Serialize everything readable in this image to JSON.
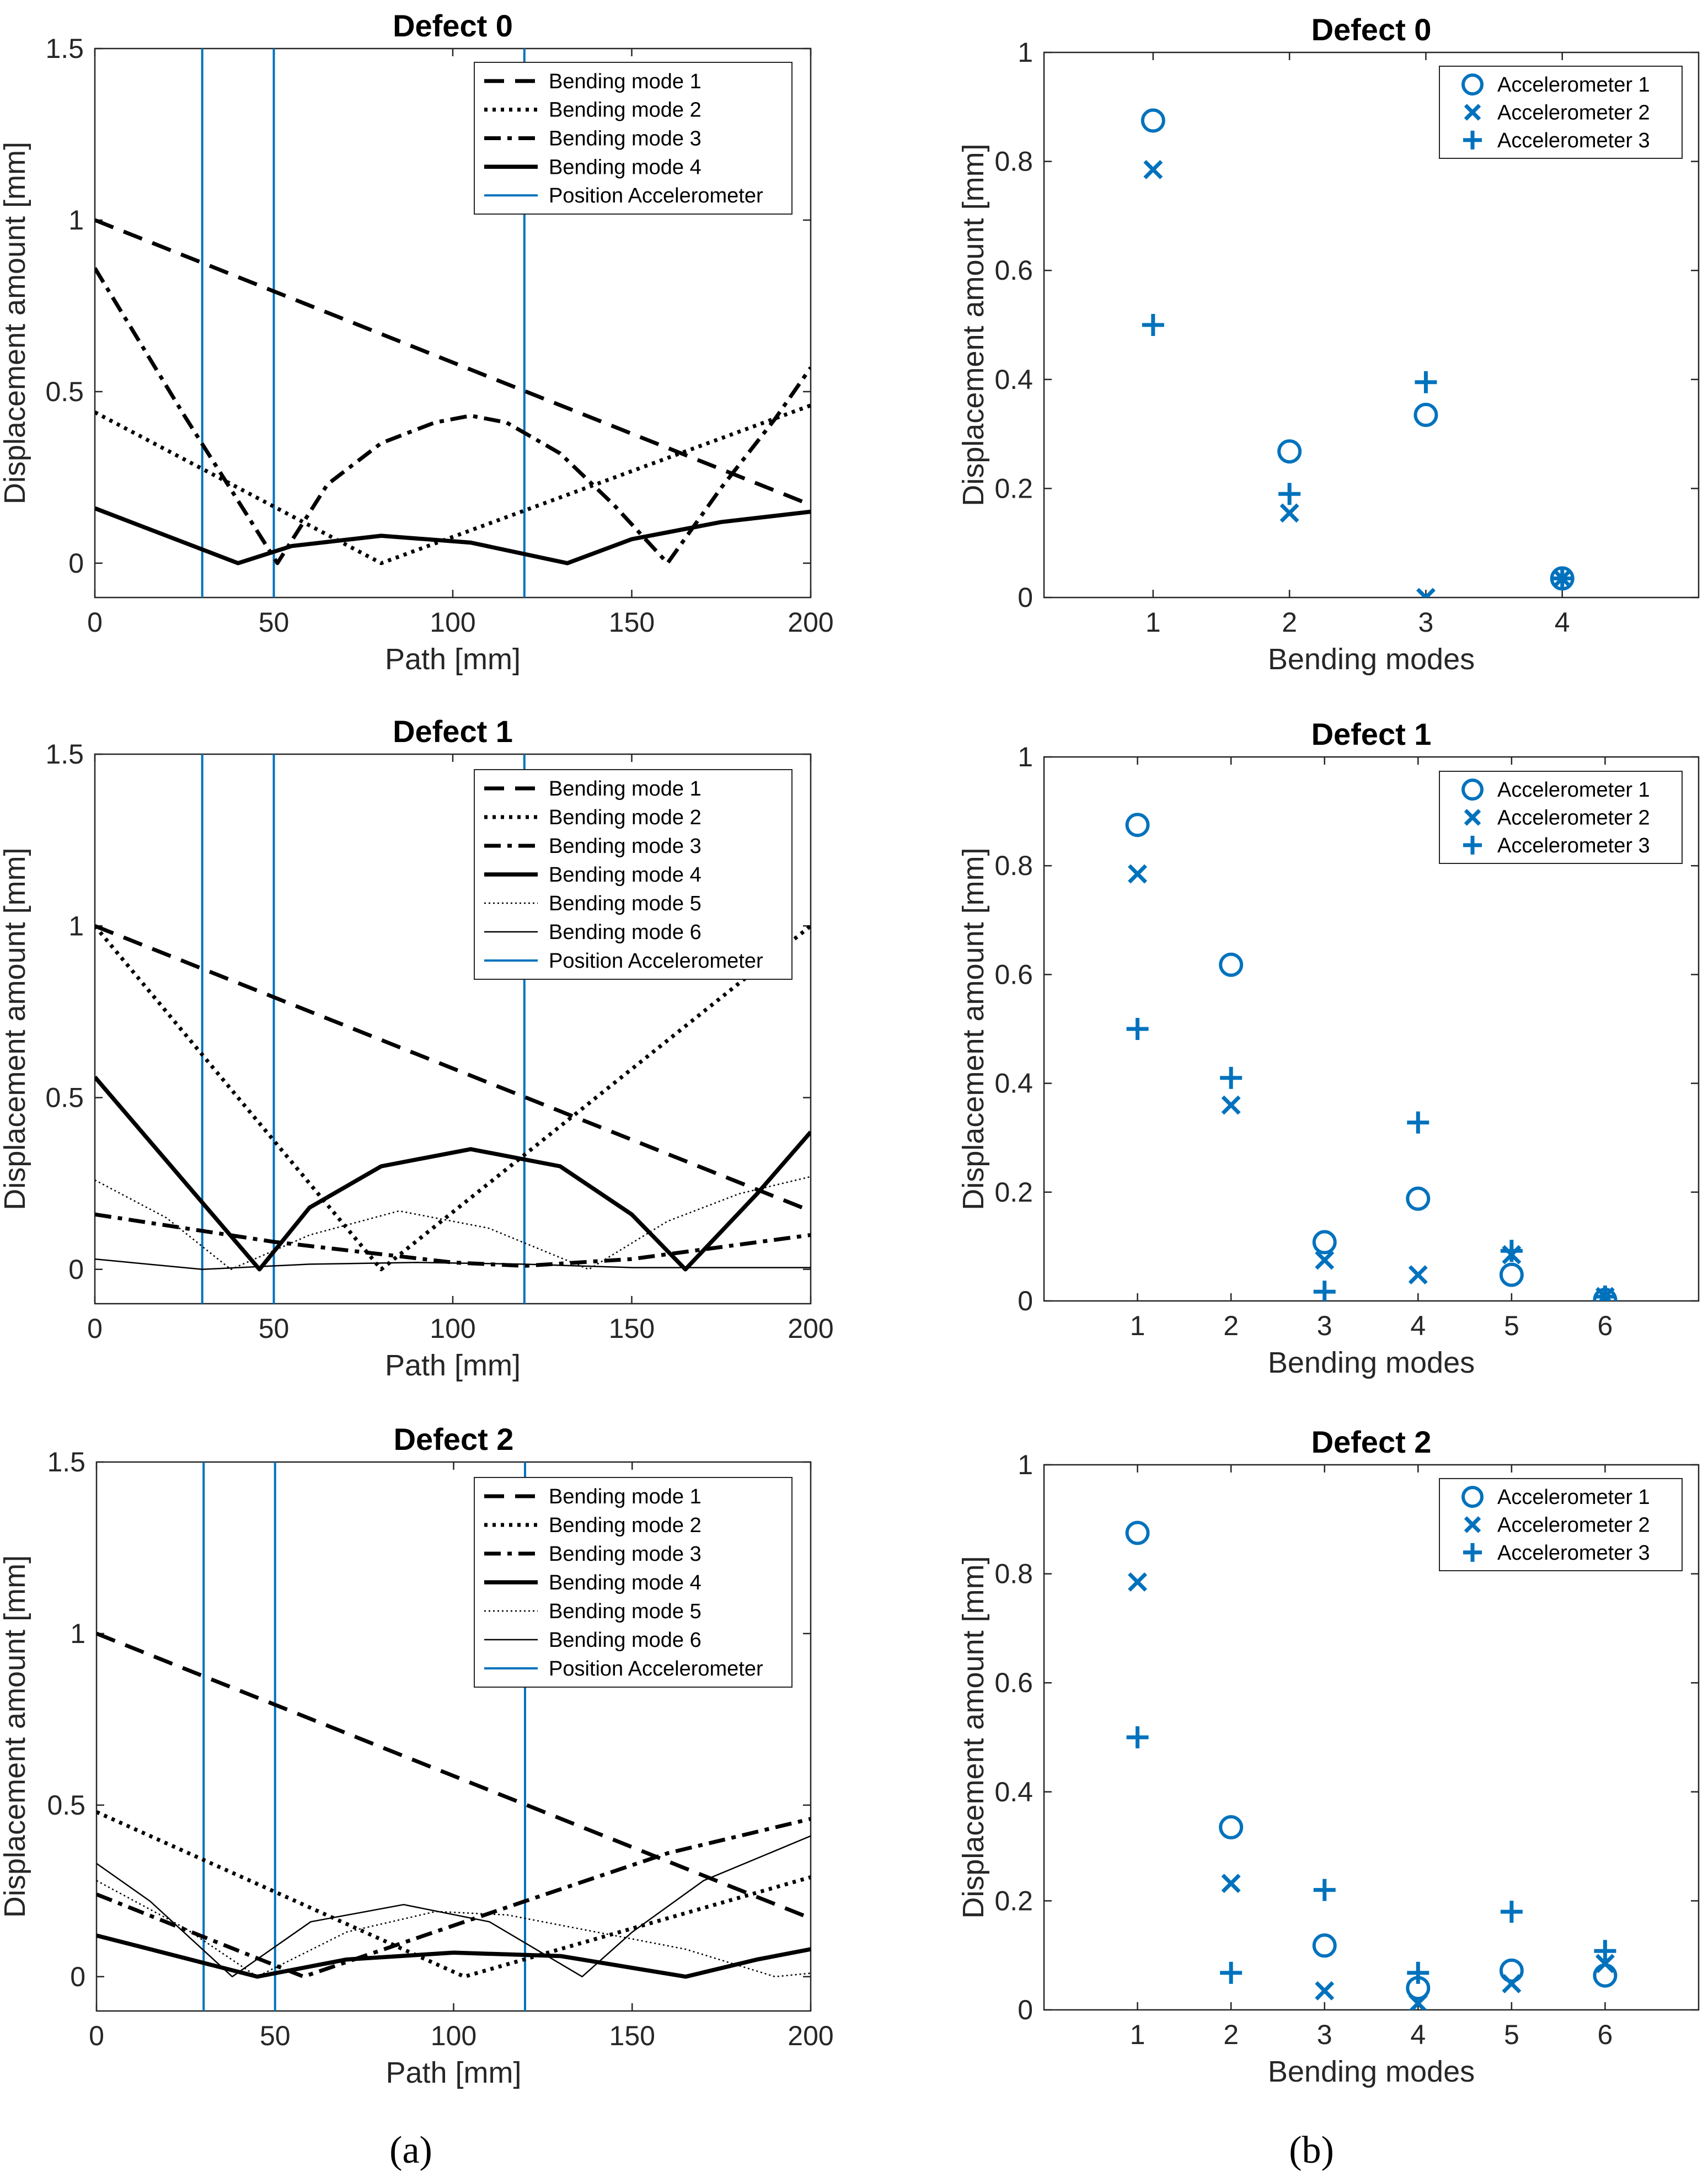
{
  "colors": {
    "accent": "#0072BD",
    "line": "#000000"
  },
  "panel_labels": {
    "a": "(a)",
    "b": "(b)"
  },
  "chart_data": [
    {
      "id": "a0",
      "type": "line",
      "title": "Defect 0",
      "xlabel": "Path [mm]",
      "ylabel": "Displacement amount [mm]",
      "xlim": [
        0,
        200
      ],
      "ylim": [
        -0.1,
        1.5
      ],
      "xticks": [
        0,
        50,
        100,
        150,
        200
      ],
      "xtick_labels": [
        "0",
        "50",
        "100",
        "150",
        "200"
      ],
      "yticks": [
        0,
        0.5,
        1,
        1.5
      ],
      "ytick_labels": [
        "0",
        "0.5",
        "1",
        "1.5"
      ],
      "vlines": [
        30,
        50,
        120
      ],
      "legend": [
        "Bending mode 1",
        "Bending mode 2",
        "Bending mode 3",
        "Bending mode 4",
        "Position Accelerometer"
      ],
      "series": [
        {
          "name": "Bending mode 1",
          "x": [
            0,
            200
          ],
          "y": [
            1.0,
            0.17
          ]
        },
        {
          "name": "Bending mode 2",
          "x": [
            0,
            80,
            200
          ],
          "y": [
            0.44,
            0.0,
            0.46
          ]
        },
        {
          "name": "Bending mode 3",
          "x": [
            0,
            25,
            51,
            65,
            80,
            95,
            105,
            115,
            130,
            145,
            160,
            175,
            190,
            200
          ],
          "y": [
            0.86,
            0.43,
            0.0,
            0.23,
            0.35,
            0.41,
            0.43,
            0.41,
            0.32,
            0.17,
            0.0,
            0.22,
            0.42,
            0.57
          ]
        },
        {
          "name": "Bending mode 4",
          "x": [
            0,
            40,
            55,
            80,
            105,
            132,
            150,
            175,
            200
          ],
          "y": [
            0.16,
            0.0,
            0.05,
            0.08,
            0.06,
            0.0,
            0.07,
            0.12,
            0.15
          ]
        }
      ]
    },
    {
      "id": "b0",
      "type": "scatter",
      "title": "Defect 0",
      "xlabel": "Bending modes",
      "ylabel": "Displacement amount [mm]",
      "xlim": [
        0.2,
        5
      ],
      "ylim": [
        0,
        1
      ],
      "xticks": [
        1,
        2,
        3,
        4
      ],
      "xtick_labels": [
        "1",
        "2",
        "3",
        "4"
      ],
      "yticks": [
        0,
        0.2,
        0.4,
        0.6,
        0.8,
        1
      ],
      "ytick_labels": [
        "0",
        "0.2",
        "0.4",
        "0.6",
        "0.8",
        "1"
      ],
      "legend": [
        "Accelerometer 1",
        "Accelerometer 2",
        "Accelerometer 3"
      ],
      "series": [
        {
          "name": "Accelerometer 1",
          "marker": "o",
          "x": [
            1,
            2,
            3,
            4
          ],
          "y": [
            0.875,
            0.268,
            0.335,
            0.035
          ]
        },
        {
          "name": "Accelerometer 2",
          "marker": "x",
          "x": [
            1,
            2,
            3,
            4
          ],
          "y": [
            0.785,
            0.155,
            0.0,
            0.035
          ]
        },
        {
          "name": "Accelerometer 3",
          "marker": "+",
          "x": [
            1,
            2,
            3,
            4
          ],
          "y": [
            0.5,
            0.19,
            0.395,
            0.035
          ]
        }
      ]
    },
    {
      "id": "a1",
      "type": "line",
      "title": "Defect 1",
      "xlabel": "Path [mm]",
      "ylabel": "Displacement amount [mm]",
      "xlim": [
        0,
        200
      ],
      "ylim": [
        -0.1,
        1.5
      ],
      "xticks": [
        0,
        50,
        100,
        150,
        200
      ],
      "xtick_labels": [
        "0",
        "50",
        "100",
        "150",
        "200"
      ],
      "yticks": [
        0,
        0.5,
        1,
        1.5
      ],
      "ytick_labels": [
        "0",
        "0.5",
        "1",
        "1.5"
      ],
      "vlines": [
        30,
        50,
        120
      ],
      "legend": [
        "Bending mode 1",
        "Bending mode 2",
        "Bending mode 3",
        "Bending mode 4",
        "Bending mode 5",
        "Bending mode 6",
        "Position Accelerometer"
      ],
      "series": [
        {
          "name": "Bending mode 1",
          "x": [
            0,
            200
          ],
          "y": [
            1.0,
            0.17
          ]
        },
        {
          "name": "Bending mode 2",
          "x": [
            0,
            80,
            200
          ],
          "y": [
            1.0,
            0.0,
            1.0
          ]
        },
        {
          "name": "Bending mode 3",
          "x": [
            0,
            50,
            100,
            120,
            150,
            200
          ],
          "y": [
            0.16,
            0.08,
            0.02,
            0.01,
            0.03,
            0.1
          ]
        },
        {
          "name": "Bending mode 4",
          "x": [
            0,
            46,
            60,
            80,
            105,
            130,
            150,
            165,
            185,
            200
          ],
          "y": [
            0.56,
            0.0,
            0.18,
            0.3,
            0.35,
            0.3,
            0.16,
            0.0,
            0.22,
            0.4
          ]
        },
        {
          "name": "Bending mode 5",
          "x": [
            0,
            20,
            38,
            60,
            85,
            110,
            138,
            160,
            180,
            200
          ],
          "y": [
            0.26,
            0.15,
            0.0,
            0.1,
            0.17,
            0.12,
            0.0,
            0.14,
            0.22,
            0.27
          ]
        },
        {
          "name": "Bending mode 6",
          "x": [
            0,
            30,
            40,
            60,
            90,
            120,
            150,
            200
          ],
          "y": [
            0.03,
            0.0,
            0.005,
            0.015,
            0.02,
            0.015,
            0.005,
            0.005
          ]
        }
      ]
    },
    {
      "id": "b1",
      "type": "scatter",
      "title": "Defect 1",
      "xlabel": "Bending modes",
      "ylabel": "Displacement amount [mm]",
      "xlim": [
        0,
        7
      ],
      "ylim": [
        0,
        1
      ],
      "xticks": [
        1,
        2,
        3,
        4,
        5,
        6
      ],
      "xtick_labels": [
        "1",
        "2",
        "3",
        "4",
        "5",
        "6"
      ],
      "yticks": [
        0,
        0.2,
        0.4,
        0.6,
        0.8,
        1
      ],
      "ytick_labels": [
        "0",
        "0.2",
        "0.4",
        "0.6",
        "0.8",
        "1"
      ],
      "legend": [
        "Accelerometer 1",
        "Accelerometer 2",
        "Accelerometer 3"
      ],
      "series": [
        {
          "name": "Accelerometer 1",
          "marker": "o",
          "x": [
            1,
            2,
            3,
            4,
            5,
            6
          ],
          "y": [
            0.875,
            0.618,
            0.108,
            0.188,
            0.048,
            0.002
          ]
        },
        {
          "name": "Accelerometer 2",
          "marker": "x",
          "x": [
            1,
            2,
            3,
            4,
            5,
            6
          ],
          "y": [
            0.785,
            0.36,
            0.075,
            0.048,
            0.085,
            0.008
          ]
        },
        {
          "name": "Accelerometer 3",
          "marker": "+",
          "x": [
            1,
            2,
            3,
            4,
            5,
            6
          ],
          "y": [
            0.5,
            0.41,
            0.017,
            0.328,
            0.092,
            0.008
          ]
        }
      ]
    },
    {
      "id": "a2",
      "type": "line",
      "title": "Defect 2",
      "xlabel": "Path [mm]",
      "ylabel": "Displacement amount [mm]",
      "xlim": [
        0,
        200
      ],
      "ylim": [
        -0.1,
        1.5
      ],
      "xticks": [
        0,
        50,
        100,
        150,
        200
      ],
      "xtick_labels": [
        "0",
        "50",
        "100",
        "150",
        "200"
      ],
      "yticks": [
        0,
        0.5,
        1,
        1.5
      ],
      "ytick_labels": [
        "0",
        "0.5",
        "1",
        "1.5"
      ],
      "vlines": [
        30,
        50,
        120
      ],
      "legend": [
        "Bending mode 1",
        "Bending mode 2",
        "Bending mode 3",
        "Bending mode 4",
        "Bending mode 5",
        "Bending mode 6",
        "Position Accelerometer"
      ],
      "series": [
        {
          "name": "Bending mode 1",
          "x": [
            0,
            200
          ],
          "y": [
            1.0,
            0.17
          ]
        },
        {
          "name": "Bending mode 2",
          "x": [
            0,
            103,
            200
          ],
          "y": [
            0.48,
            0.0,
            0.29
          ]
        },
        {
          "name": "Bending mode 3",
          "x": [
            0,
            58,
            120,
            160,
            200
          ],
          "y": [
            0.24,
            0.0,
            0.22,
            0.36,
            0.46
          ]
        },
        {
          "name": "Bending mode 4",
          "x": [
            0,
            45,
            70,
            100,
            130,
            165,
            185,
            200
          ],
          "y": [
            0.12,
            0.0,
            0.05,
            0.07,
            0.06,
            0.0,
            0.05,
            0.08
          ]
        },
        {
          "name": "Bending mode 5",
          "x": [
            0,
            25,
            45,
            70,
            95,
            115,
            140,
            165,
            190,
            200
          ],
          "y": [
            0.28,
            0.14,
            0.0,
            0.13,
            0.19,
            0.18,
            0.13,
            0.08,
            0.0,
            0.01
          ]
        },
        {
          "name": "Bending mode 6",
          "x": [
            0,
            15,
            38,
            60,
            86,
            110,
            136,
            150,
            170,
            200
          ],
          "y": [
            0.33,
            0.22,
            0.0,
            0.16,
            0.21,
            0.16,
            0.0,
            0.13,
            0.28,
            0.41
          ]
        }
      ]
    },
    {
      "id": "b2",
      "type": "scatter",
      "title": "Defect 2",
      "xlabel": "Bending modes",
      "ylabel": "Displacement amount [mm]",
      "xlim": [
        0,
        7
      ],
      "ylim": [
        0,
        1
      ],
      "xticks": [
        1,
        2,
        3,
        4,
        5,
        6
      ],
      "xtick_labels": [
        "1",
        "2",
        "3",
        "4",
        "5",
        "6"
      ],
      "yticks": [
        0,
        0.2,
        0.4,
        0.6,
        0.8,
        1
      ],
      "ytick_labels": [
        "0",
        "0.2",
        "0.4",
        "0.6",
        "0.8",
        "1"
      ],
      "legend": [
        "Accelerometer 1",
        "Accelerometer 2",
        "Accelerometer 3"
      ],
      "series": [
        {
          "name": "Accelerometer 1",
          "marker": "o",
          "x": [
            1,
            2,
            3,
            4,
            5,
            6
          ],
          "y": [
            0.875,
            0.335,
            0.118,
            0.04,
            0.072,
            0.063
          ]
        },
        {
          "name": "Accelerometer 2",
          "marker": "x",
          "x": [
            1,
            2,
            3,
            4,
            5,
            6
          ],
          "y": [
            0.785,
            0.232,
            0.035,
            0.012,
            0.048,
            0.085
          ]
        },
        {
          "name": "Accelerometer 3",
          "marker": "+",
          "x": [
            1,
            2,
            3,
            4,
            5,
            6
          ],
          "y": [
            0.5,
            0.068,
            0.22,
            0.068,
            0.18,
            0.108
          ]
        }
      ]
    }
  ]
}
